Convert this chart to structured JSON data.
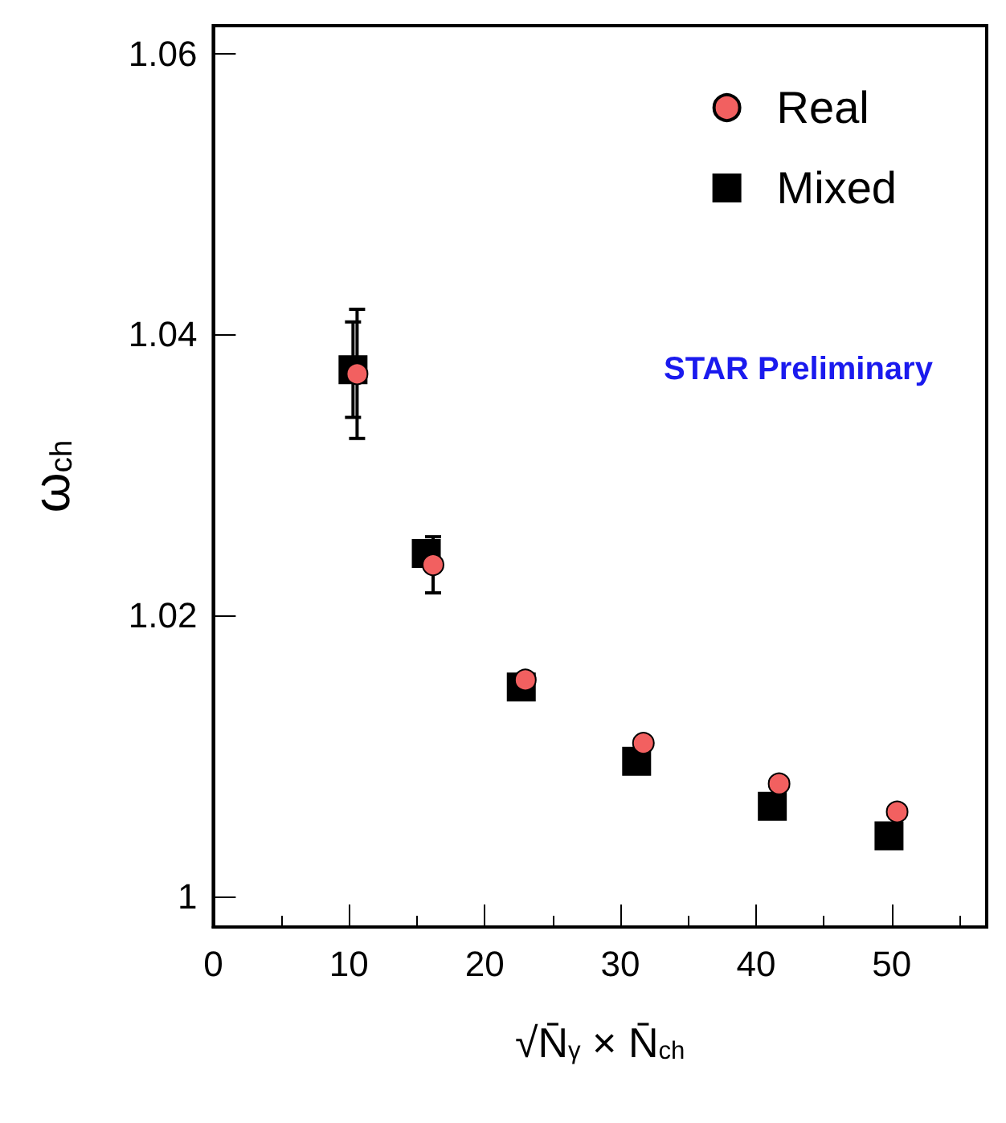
{
  "chart_data": {
    "type": "scatter",
    "xlabel": "√N̄$_{γ}$ × N̄$_{ch}$",
    "ylabel": "ω$_{ch}$",
    "xlim": [
      0,
      57
    ],
    "xticks": [
      0,
      10,
      20,
      30,
      40,
      50
    ],
    "ylim": [
      0.9978,
      1.062
    ],
    "yticks": [
      1,
      1.02,
      1.04,
      1.06
    ],
    "legend": "top right",
    "grid": false,
    "annotations": [
      "STAR Preliminary"
    ],
    "series": [
      {
        "name": "Mixed",
        "color": "#000000",
        "marker": "square",
        "x": [
          10.3,
          15.7,
          22.7,
          31.2,
          41.2,
          49.8
        ],
        "values": [
          1.0375,
          1.0244,
          1.0149,
          1.0096,
          1.0064,
          1.0043
        ],
        "errors": [
          0.0034,
          null,
          null,
          null,
          null,
          null
        ]
      },
      {
        "name": "Real",
        "color": "#f26060",
        "marker": "circle",
        "x": [
          10.6,
          16.2,
          23.0,
          31.7,
          41.7,
          50.4
        ],
        "values": [
          1.0372,
          1.0236,
          1.0154,
          1.0109,
          1.008,
          1.006
        ],
        "errors": [
          0.0046,
          0.002,
          null,
          null,
          null,
          null
        ]
      }
    ]
  }
}
